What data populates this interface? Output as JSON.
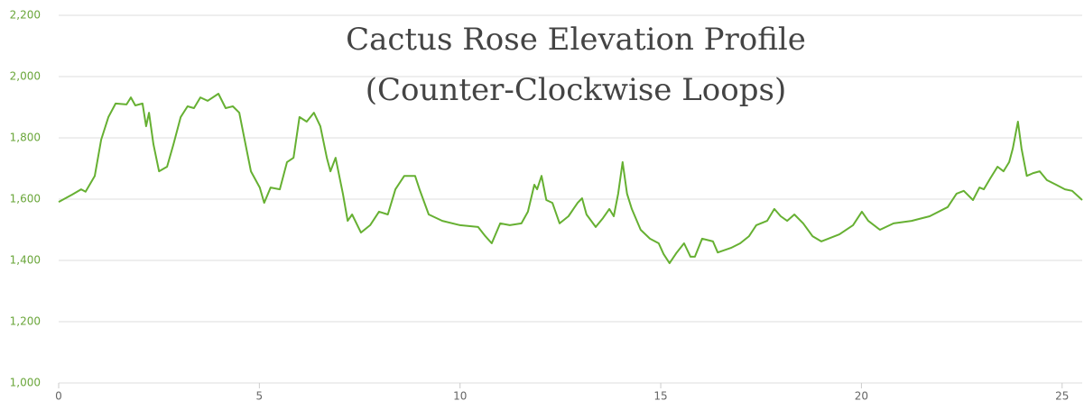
{
  "chart_data": {
    "type": "line",
    "title": "Cactus Rose Elevation Profile",
    "subtitle": "(Counter-Clockwise Loops)",
    "x": [
      0,
      0.34,
      0.56,
      0.67,
      0.9,
      1.06,
      1.24,
      1.42,
      1.69,
      1.8,
      1.91,
      2.09,
      2.18,
      2.25,
      2.36,
      2.5,
      2.7,
      2.86,
      3.04,
      3.21,
      3.37,
      3.53,
      3.71,
      3.98,
      4.16,
      4.34,
      4.5,
      4.61,
      4.79,
      5.01,
      5.12,
      5.28,
      5.51,
      5.69,
      5.85,
      6.0,
      6.18,
      6.36,
      6.52,
      6.68,
      6.77,
      6.9,
      7.08,
      7.2,
      7.31,
      7.53,
      7.76,
      7.98,
      8.2,
      8.39,
      8.61,
      8.88,
      8.99,
      9.22,
      9.56,
      10.0,
      10.45,
      10.63,
      10.79,
      11.0,
      11.24,
      11.53,
      11.69,
      11.85,
      11.92,
      12.03,
      12.15,
      12.3,
      12.48,
      12.7,
      12.93,
      13.04,
      13.15,
      13.38,
      13.56,
      13.72,
      13.83,
      13.94,
      14.05,
      14.16,
      14.28,
      14.5,
      14.73,
      14.95,
      15.07,
      15.22,
      15.4,
      15.58,
      15.74,
      15.85,
      16.03,
      16.3,
      16.42,
      16.75,
      16.98,
      17.2,
      17.38,
      17.65,
      17.83,
      17.99,
      18.15,
      18.33,
      18.55,
      18.78,
      19.0,
      19.45,
      19.79,
      20.01,
      20.17,
      20.46,
      20.8,
      21.25,
      21.7,
      22.15,
      22.37,
      22.55,
      22.78,
      22.94,
      23.05,
      23.21,
      23.39,
      23.54,
      23.68,
      23.77,
      23.9,
      23.99,
      24.12,
      24.28,
      24.44,
      24.62,
      24.85,
      25.07,
      25.25,
      25.5
    ],
    "series": [
      {
        "color": "#66b032",
        "values": [
          1591,
          1615,
          1632,
          1624,
          1676,
          1794,
          1868,
          1912,
          1909,
          1932,
          1906,
          1912,
          1838,
          1882,
          1779,
          1691,
          1706,
          1779,
          1868,
          1903,
          1897,
          1932,
          1921,
          1944,
          1897,
          1903,
          1882,
          1809,
          1691,
          1638,
          1588,
          1638,
          1632,
          1721,
          1735,
          1868,
          1853,
          1882,
          1838,
          1735,
          1691,
          1735,
          1618,
          1529,
          1550,
          1491,
          1515,
          1559,
          1550,
          1632,
          1676,
          1676,
          1632,
          1550,
          1529,
          1515,
          1509,
          1479,
          1456,
          1521,
          1515,
          1521,
          1559,
          1647,
          1632,
          1676,
          1597,
          1588,
          1521,
          1544,
          1588,
          1603,
          1550,
          1509,
          1538,
          1568,
          1544,
          1618,
          1721,
          1618,
          1568,
          1500,
          1471,
          1456,
          1421,
          1391,
          1426,
          1456,
          1412,
          1412,
          1471,
          1462,
          1426,
          1441,
          1456,
          1479,
          1515,
          1529,
          1568,
          1544,
          1529,
          1550,
          1521,
          1479,
          1462,
          1485,
          1515,
          1559,
          1529,
          1500,
          1521,
          1529,
          1544,
          1574,
          1618,
          1627,
          1597,
          1638,
          1632,
          1668,
          1706,
          1691,
          1721,
          1765,
          1853,
          1765,
          1676,
          1685,
          1691,
          1662,
          1647,
          1632,
          1627,
          1597
        ]
      }
    ],
    "xlim": [
      0,
      25.5
    ],
    "ylim": [
      1000,
      2200
    ],
    "xticks": [
      0,
      5,
      10,
      15,
      20,
      25
    ],
    "yticks": [
      {
        "value": 1000,
        "label": "1,000"
      },
      {
        "value": 1200,
        "label": "1,200"
      },
      {
        "value": 1400,
        "label": "1,400"
      },
      {
        "value": 1600,
        "label": "1,600"
      },
      {
        "value": 1800,
        "label": "1,800"
      },
      {
        "value": 2000,
        "label": "2,000"
      },
      {
        "value": 2200,
        "label": "2,200"
      }
    ],
    "grid": true
  }
}
